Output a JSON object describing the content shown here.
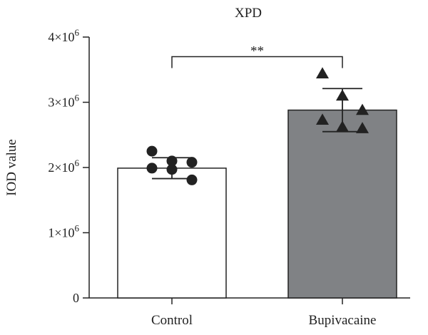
{
  "chart_data": {
    "type": "bar",
    "title": "XPD",
    "xlabel": "",
    "ylabel": "IOD value",
    "ylim": [
      0,
      4000000
    ],
    "yticks": [
      {
        "value": 0,
        "base": "0",
        "exp": ""
      },
      {
        "value": 1000000,
        "base": "1×10",
        "exp": "6"
      },
      {
        "value": 2000000,
        "base": "2×10",
        "exp": "6"
      },
      {
        "value": 3000000,
        "base": "3×10",
        "exp": "6"
      },
      {
        "value": 4000000,
        "base": "4×10",
        "exp": "6"
      }
    ],
    "categories": [
      "Control",
      "Bupivacaine"
    ],
    "bars": [
      {
        "category": "Control",
        "mean": 1990000,
        "error": 160000,
        "fill": "#ffffff",
        "marker": "circle",
        "points": [
          2250000,
          2100000,
          2080000,
          1990000,
          1970000,
          1810000
        ]
      },
      {
        "category": "Bupivacaine",
        "mean": 2880000,
        "error": 330000,
        "fill": "#808285",
        "marker": "triangle",
        "points": [
          3440000,
          3100000,
          2880000,
          2730000,
          2620000,
          2600000
        ]
      }
    ],
    "significance": {
      "label": "**",
      "from": 0,
      "to": 1,
      "y": 3700000
    },
    "grid": false,
    "legend": "none"
  },
  "colors": {
    "axis": "#222222",
    "marker": "#222222",
    "bar_edge": "#222222"
  }
}
